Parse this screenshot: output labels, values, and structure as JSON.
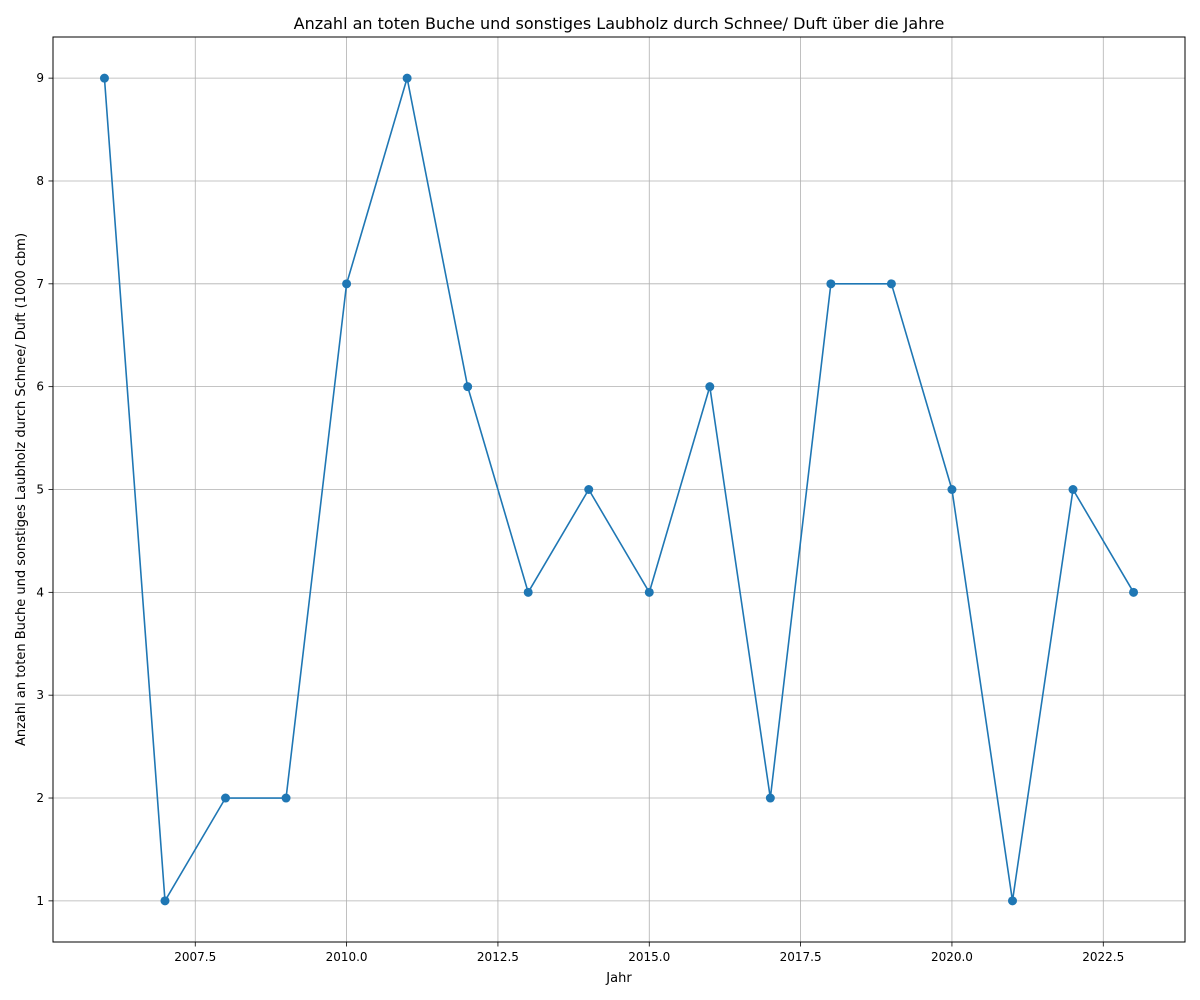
{
  "chart_data": {
    "type": "line",
    "title": "Anzahl an toten Buche und sonstiges Laubholz durch Schnee/ Duft über die Jahre",
    "xlabel": "Jahr",
    "ylabel": "Anzahl an toten Buche und sonstiges Laubholz durch Schnee/ Duft (1000 cbm)",
    "xlim": [
      2005.15,
      2023.85
    ],
    "ylim": [
      0.6,
      9.4
    ],
    "x_ticks": [
      2007.5,
      2010.0,
      2012.5,
      2015.0,
      2017.5,
      2020.0,
      2022.5
    ],
    "x_tick_labels": [
      "2007.5",
      "2010.0",
      "2012.5",
      "2015.0",
      "2017.5",
      "2020.0",
      "2022.5"
    ],
    "y_ticks": [
      1,
      2,
      3,
      4,
      5,
      6,
      7,
      8,
      9
    ],
    "y_tick_labels": [
      "1",
      "2",
      "3",
      "4",
      "5",
      "6",
      "7",
      "8",
      "9"
    ],
    "grid": true,
    "series": [
      {
        "color": "#1f77b4",
        "marker": "circle",
        "x": [
          2006,
          2007,
          2008,
          2009,
          2010,
          2011,
          2012,
          2013,
          2014,
          2015,
          2016,
          2017,
          2018,
          2019,
          2020,
          2021,
          2022,
          2023
        ],
        "y": [
          9,
          1,
          2,
          2,
          7,
          9,
          6,
          4,
          5,
          4,
          6,
          2,
          7,
          7,
          5,
          1,
          5,
          4
        ]
      }
    ]
  }
}
